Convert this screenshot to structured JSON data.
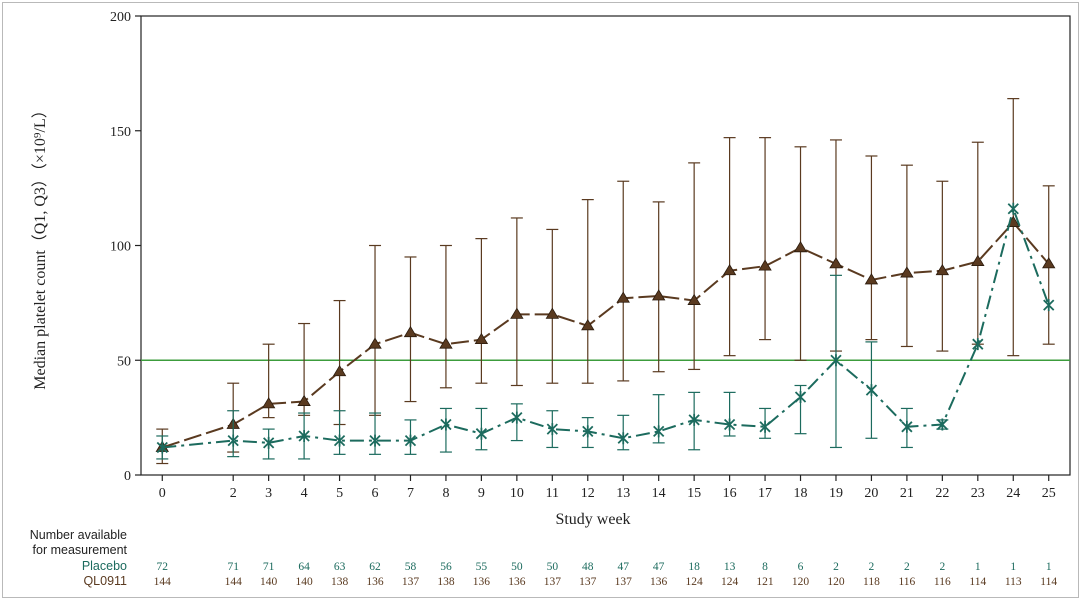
{
  "chart_data": {
    "type": "line",
    "title": "",
    "xlabel": "Study week",
    "ylabel": "Median platelet count（Q1, Q3）（×10⁹/L）",
    "x": [
      0,
      2,
      3,
      4,
      5,
      6,
      7,
      8,
      9,
      10,
      11,
      12,
      13,
      14,
      15,
      16,
      17,
      18,
      19,
      20,
      21,
      22,
      23,
      24,
      25
    ],
    "xlim": [
      -0.6,
      25.6
    ],
    "ylim": [
      0,
      200
    ],
    "yticks": [
      0,
      50,
      100,
      150,
      200
    ],
    "reference_line": 50,
    "grid": false,
    "legend": "none",
    "series": [
      {
        "name": "QL0911",
        "color": "#5a3a20",
        "marker": "triangle",
        "median": [
          12,
          22,
          31,
          32,
          45,
          57,
          62,
          57,
          59,
          70,
          70,
          65,
          77,
          78,
          76,
          89,
          91,
          99,
          92,
          85,
          88,
          89,
          93,
          110,
          92
        ],
        "q1": [
          5,
          10,
          25,
          26,
          22,
          26,
          32,
          38,
          40,
          39,
          40,
          40,
          41,
          45,
          46,
          52,
          59,
          50,
          54,
          59,
          56,
          54,
          57,
          52,
          57
        ],
        "q3": [
          20,
          40,
          57,
          66,
          76,
          100,
          95,
          100,
          103,
          112,
          107,
          120,
          128,
          119,
          136,
          147,
          147,
          143,
          146,
          139,
          135,
          128,
          145,
          164,
          126
        ]
      },
      {
        "name": "Placebo",
        "color": "#1c6b5e",
        "marker": "asterisk",
        "median": [
          12,
          15,
          14,
          17,
          15,
          15,
          15,
          22,
          18,
          25,
          20,
          19,
          16,
          19,
          24,
          22,
          21,
          34,
          50,
          37,
          21,
          22,
          57,
          116,
          74
        ],
        "q1": [
          7,
          8,
          7,
          7,
          9,
          9,
          9,
          10,
          11,
          15,
          12,
          12,
          11,
          14,
          11,
          17,
          16,
          18,
          12,
          16,
          12,
          20,
          57,
          116,
          74
        ],
        "q3": [
          17,
          28,
          20,
          27,
          28,
          27,
          24,
          29,
          29,
          31,
          28,
          25,
          26,
          35,
          36,
          36,
          29,
          39,
          87,
          58,
          29,
          24,
          57,
          116,
          74
        ]
      }
    ]
  },
  "table": {
    "header_line1": "Number available",
    "header_line2": "for measurement",
    "rows": [
      {
        "label": "Placebo",
        "color": "#1c6b5e",
        "values": [
          "72",
          "71",
          "71",
          "64",
          "63",
          "62",
          "58",
          "56",
          "55",
          "50",
          "50",
          "48",
          "47",
          "47",
          "18",
          "13",
          "8",
          "6",
          "2",
          "2",
          "2",
          "2",
          "1",
          "1",
          "1"
        ]
      },
      {
        "label": "QL0911",
        "color": "#5a3a20",
        "values": [
          "144",
          "144",
          "140",
          "140",
          "138",
          "136",
          "137",
          "138",
          "136",
          "136",
          "137",
          "137",
          "137",
          "136",
          "124",
          "124",
          "121",
          "120",
          "120",
          "118",
          "116",
          "116",
          "114",
          "113",
          "114"
        ]
      }
    ]
  },
  "colors": {
    "reference_line": "#3c9c3c",
    "axis": "#222222"
  }
}
